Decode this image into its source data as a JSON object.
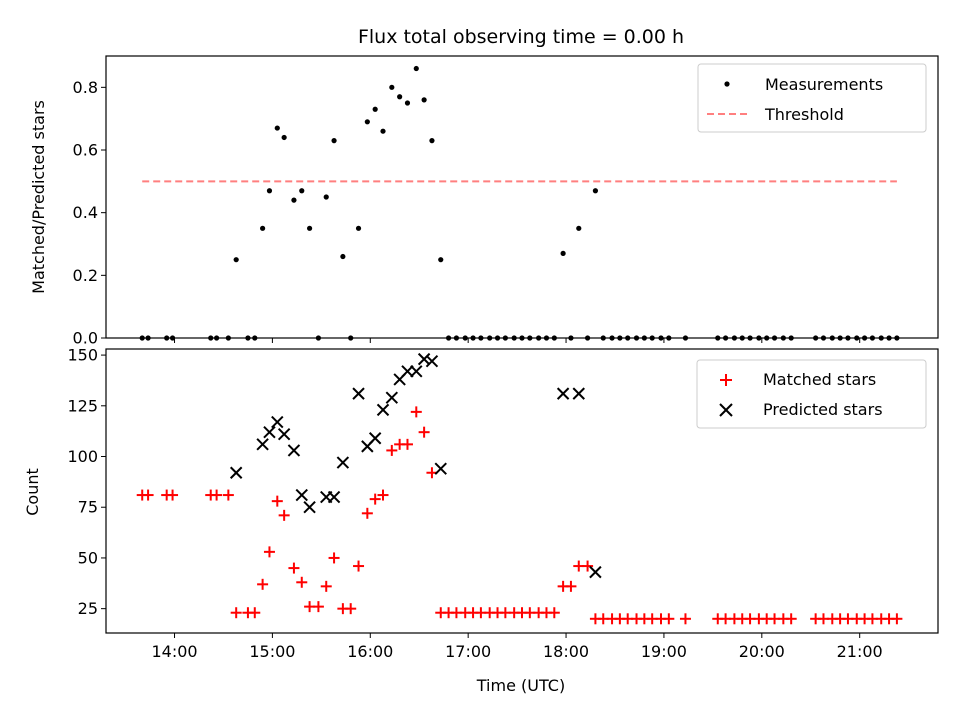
{
  "colors": {
    "measurements": "#000000",
    "threshold": "#ff7f7f",
    "matched": "#ff0000",
    "predicted": "#000000"
  },
  "chart_data": [
    {
      "type": "scatter",
      "title": "Flux total observing time = 0.00 h",
      "xlabel": "",
      "ylabel": "Matched/Predicted stars",
      "xlim": [
        13.3,
        21.8
      ],
      "ylim": [
        0.0,
        0.9
      ],
      "xticks": [
        14,
        15,
        16,
        17,
        18,
        19,
        20,
        21
      ],
      "yticks": [
        0.0,
        0.2,
        0.4,
        0.6,
        0.8
      ],
      "ytick_labels": [
        "0.0",
        "0.2",
        "0.4",
        "0.6",
        "0.8"
      ],
      "legend_position": "top-right",
      "series": [
        {
          "name": "Measurements",
          "kind": "scatter",
          "marker": "dot",
          "x": [
            13.67,
            13.73,
            13.92,
            13.98,
            14.37,
            14.43,
            14.55,
            14.63,
            14.75,
            14.82,
            14.9,
            14.97,
            15.05,
            15.12,
            15.22,
            15.3,
            15.38,
            15.47,
            15.55,
            15.63,
            15.72,
            15.8,
            15.88,
            15.97,
            16.05,
            16.13,
            16.22,
            16.3,
            16.38,
            16.47,
            16.55,
            16.63,
            16.72,
            16.8,
            16.88,
            16.97,
            17.05,
            17.13,
            17.22,
            17.3,
            17.38,
            17.47,
            17.55,
            17.63,
            17.72,
            17.8,
            17.88,
            17.97,
            18.05,
            18.13,
            18.22,
            18.3,
            18.38,
            18.47,
            18.55,
            18.63,
            18.72,
            18.8,
            18.88,
            18.97,
            19.05,
            19.22,
            19.55,
            19.63,
            19.72,
            19.8,
            19.88,
            19.97,
            20.05,
            20.13,
            20.22,
            20.3,
            20.55,
            20.63,
            20.72,
            20.8,
            20.88,
            20.97,
            21.05,
            21.13,
            21.22,
            21.3,
            21.38
          ],
          "y": [
            0.0,
            0.0,
            0.0,
            0.0,
            0.0,
            0.0,
            0.0,
            0.25,
            0.0,
            0.0,
            0.35,
            0.47,
            0.67,
            0.64,
            0.44,
            0.47,
            0.35,
            0.0,
            0.45,
            0.63,
            0.26,
            0.0,
            0.35,
            0.69,
            0.73,
            0.66,
            0.8,
            0.77,
            0.75,
            0.86,
            0.76,
            0.63,
            0.25,
            0.0,
            0.0,
            0.0,
            0.0,
            0.0,
            0.0,
            0.0,
            0.0,
            0.0,
            0.0,
            0.0,
            0.0,
            0.0,
            0.0,
            0.27,
            0.0,
            0.35,
            0.0,
            0.47,
            0.0,
            0.0,
            0.0,
            0.0,
            0.0,
            0.0,
            0.0,
            0.0,
            0.0,
            0.0,
            0.0,
            0.0,
            0.0,
            0.0,
            0.0,
            0.0,
            0.0,
            0.0,
            0.0,
            0.0,
            0.0,
            0.0,
            0.0,
            0.0,
            0.0,
            0.0,
            0.0,
            0.0,
            0.0,
            0.0,
            0.0
          ]
        },
        {
          "name": "Threshold",
          "kind": "line",
          "style": "dashed",
          "x": [
            13.67,
            21.38
          ],
          "y": [
            0.5,
            0.5
          ]
        }
      ]
    },
    {
      "type": "scatter",
      "title": "",
      "xlabel": "Time (UTC)",
      "ylabel": "Count",
      "xlim": [
        13.3,
        21.8
      ],
      "ylim": [
        13,
        153
      ],
      "xticks": [
        14,
        15,
        16,
        17,
        18,
        19,
        20,
        21
      ],
      "xtick_labels": [
        "14:00",
        "15:00",
        "16:00",
        "17:00",
        "18:00",
        "19:00",
        "20:00",
        "21:00"
      ],
      "yticks": [
        25,
        50,
        75,
        100,
        125,
        150
      ],
      "ytick_labels": [
        "25",
        "50",
        "75",
        "100",
        "125",
        "150"
      ],
      "legend_position": "top-right",
      "series": [
        {
          "name": "Matched stars",
          "kind": "scatter",
          "marker": "plus",
          "x": [
            13.67,
            13.73,
            13.92,
            13.98,
            14.37,
            14.43,
            14.55,
            14.63,
            14.75,
            14.82,
            14.9,
            14.97,
            15.05,
            15.12,
            15.22,
            15.3,
            15.38,
            15.47,
            15.55,
            15.63,
            15.72,
            15.8,
            15.88,
            15.97,
            16.05,
            16.13,
            16.22,
            16.3,
            16.38,
            16.47,
            16.55,
            16.63,
            16.72,
            16.8,
            16.88,
            16.97,
            17.05,
            17.13,
            17.22,
            17.3,
            17.38,
            17.47,
            17.55,
            17.63,
            17.72,
            17.8,
            17.88,
            17.97,
            18.05,
            18.13,
            18.22,
            18.3,
            18.38,
            18.47,
            18.55,
            18.63,
            18.72,
            18.8,
            18.88,
            18.97,
            19.05,
            19.22,
            19.55,
            19.63,
            19.72,
            19.8,
            19.88,
            19.97,
            20.05,
            20.13,
            20.22,
            20.3,
            20.55,
            20.63,
            20.72,
            20.8,
            20.88,
            20.97,
            21.05,
            21.13,
            21.22,
            21.3,
            21.38
          ],
          "y": [
            81,
            81,
            81,
            81,
            81,
            81,
            81,
            23,
            23,
            23,
            37,
            53,
            78,
            71,
            45,
            38,
            26,
            26,
            36,
            50,
            25,
            25,
            46,
            72,
            79,
            81,
            103,
            106,
            106,
            122,
            112,
            92,
            23,
            23,
            23,
            23,
            23,
            23,
            23,
            23,
            23,
            23,
            23,
            23,
            23,
            23,
            23,
            36,
            36,
            46,
            46,
            20,
            20,
            20,
            20,
            20,
            20,
            20,
            20,
            20,
            20,
            20,
            20,
            20,
            20,
            20,
            20,
            20,
            20,
            20,
            20,
            20,
            20,
            20,
            20,
            20,
            20,
            20,
            20,
            20,
            20,
            20,
            20
          ]
        },
        {
          "name": "Predicted stars",
          "kind": "scatter",
          "marker": "x",
          "x": [
            14.63,
            14.9,
            14.97,
            15.05,
            15.12,
            15.22,
            15.3,
            15.38,
            15.55,
            15.63,
            15.72,
            15.88,
            15.97,
            16.05,
            16.13,
            16.22,
            16.3,
            16.38,
            16.47,
            16.55,
            16.63,
            16.72,
            17.97,
            18.13,
            18.3
          ],
          "y": [
            92,
            106,
            112,
            117,
            111,
            103,
            81,
            75,
            80,
            80,
            97,
            131,
            105,
            109,
            123,
            129,
            138,
            142,
            142,
            148,
            147,
            94,
            131,
            131,
            43
          ]
        }
      ]
    }
  ]
}
